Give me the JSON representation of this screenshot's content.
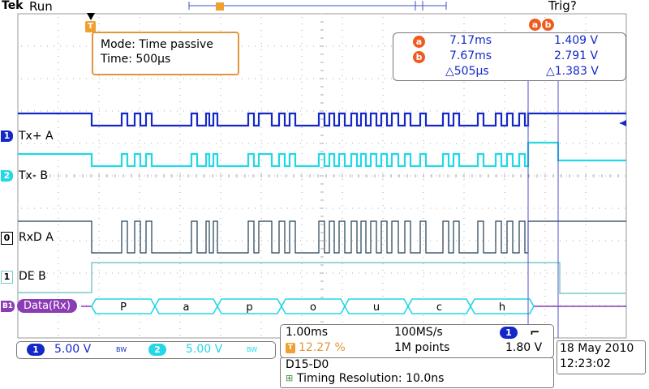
{
  "header": {
    "brand": "Tek",
    "run_state": "Run",
    "trigger_status": "Trig?"
  },
  "mode_box": {
    "mode": "Mode: Time passive",
    "time": "Time: 500µs"
  },
  "cursors": {
    "a_label": "a",
    "b_label": "b",
    "a_time": "7.17ms",
    "a_volt": "1.409 V",
    "b_time": "7.67ms",
    "b_volt": "2.791 V",
    "delta_time": "△505µs",
    "delta_volt": "△1.383 V"
  },
  "channels": {
    "ch1_marker": "1",
    "ch1_label": "Tx+ A",
    "ch2_marker": "2",
    "ch2_label": "Tx- B",
    "d0_marker": "0",
    "d0_label": "RxD A",
    "d1_marker": "1",
    "d1_label": "DE B",
    "bus_marker": "B1",
    "bus_label": "Data(Rx)"
  },
  "bus_decode": [
    "P",
    "a",
    "p",
    "o",
    "u",
    "c",
    "h"
  ],
  "status_bar": {
    "ch1_num": "1",
    "ch1_scale": "5.00 V",
    "ch1_bw": "BW",
    "ch2_num": "2",
    "ch2_scale": "5.00 V",
    "ch2_bw": "BW"
  },
  "acquisition": {
    "timebase": "1.00ms",
    "sample_rate": "100MS/s",
    "trig_source": "1",
    "trig_slope": "⌐",
    "trig_pos": "12.27 %",
    "record_length": "1M points",
    "trig_level": "1.80 V"
  },
  "date_box": {
    "date": "18 May 2010",
    "time": "12:23:02"
  },
  "timing_box": {
    "channels": "D15-D0",
    "resolution": "Timing Resolution: 10.0ns"
  },
  "colors": {
    "ch1": "#1428c8",
    "ch2": "#23d7e6",
    "digital": "#1e3c50",
    "de": "#78c8c8",
    "bus": "#8c3cb4",
    "cursor": "#5050c8",
    "accent": "#f05a1e"
  }
}
